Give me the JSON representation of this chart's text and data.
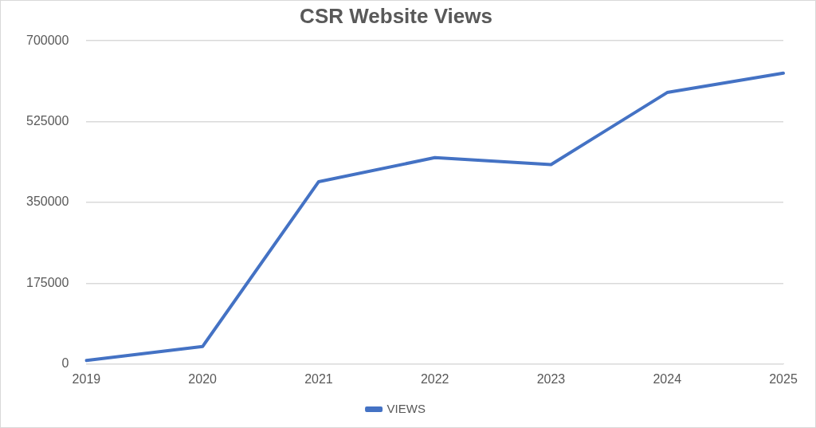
{
  "chart_data": {
    "type": "line",
    "title": "CSR Website Views",
    "categories": [
      "2019",
      "2020",
      "2021",
      "2022",
      "2023",
      "2024",
      "2025"
    ],
    "series": [
      {
        "name": "VIEWS",
        "color": "#4472c4",
        "values": [
          8000,
          38000,
          395000,
          447000,
          432000,
          588000,
          630000
        ]
      }
    ],
    "ylim": [
      0,
      700000
    ],
    "yticks": [
      0,
      175000,
      350000,
      525000,
      700000
    ],
    "grid": "y",
    "legend": "bottom",
    "marker": "none",
    "line_style": "solid"
  }
}
